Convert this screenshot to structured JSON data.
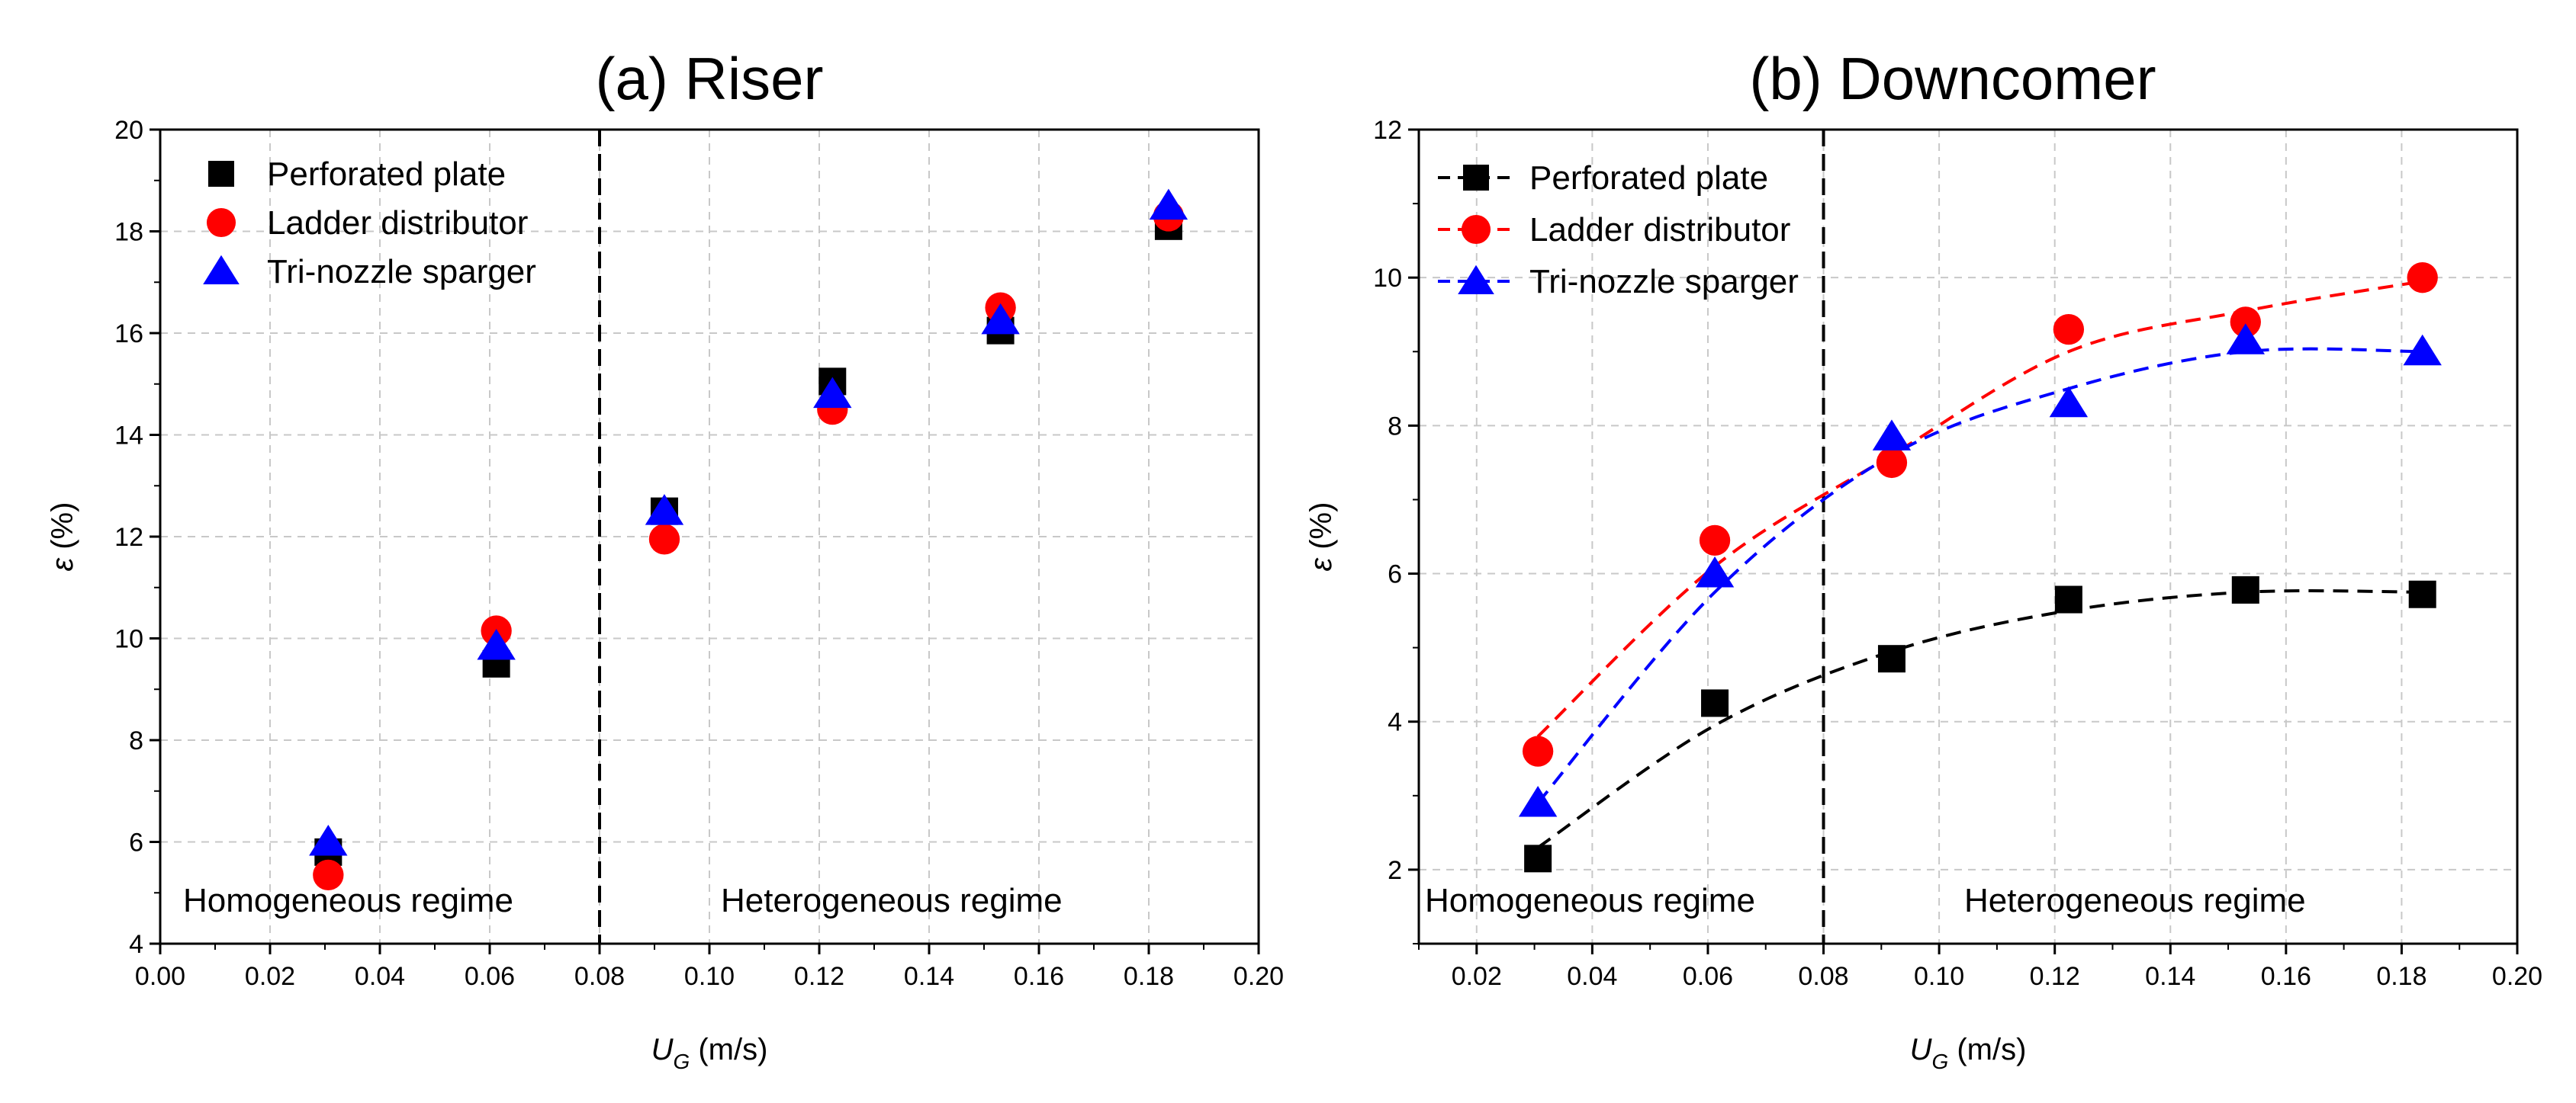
{
  "chart_data": [
    {
      "type": "scatter",
      "title": "(a) Riser",
      "xlabel_main": "U",
      "xlabel_sub": "G",
      "xlabel_unit": " (m/s)",
      "ylabel_main": "ε",
      "ylabel_unit": " (%)",
      "xlim": [
        0,
        0.2
      ],
      "ylim": [
        4,
        20
      ],
      "xticks": [
        0.0,
        0.02,
        0.04,
        0.06,
        0.08,
        0.1,
        0.12,
        0.14,
        0.16,
        0.18,
        0.2
      ],
      "xtick_labels": [
        "0.00",
        "0.02",
        "0.04",
        "0.06",
        "0.08",
        "0.10",
        "0.12",
        "0.14",
        "0.16",
        "0.18",
        "0.20"
      ],
      "yticks": [
        4,
        6,
        8,
        10,
        12,
        14,
        16,
        18,
        20
      ],
      "ytick_labels": [
        "4",
        "6",
        "8",
        "10",
        "12",
        "14",
        "16",
        "18",
        "20"
      ],
      "grid": true,
      "legend_position": "top-left",
      "regime_boundary_x": 0.08,
      "regime_labels": [
        "Homogeneous regime",
        "Heterogeneous regime"
      ],
      "x": [
        0.0306,
        0.0612,
        0.0918,
        0.1224,
        0.153,
        0.1836
      ],
      "series": [
        {
          "name": "Perforated plate",
          "marker": "square",
          "color": "#000000",
          "values": [
            5.8,
            9.5,
            12.5,
            15.05,
            16.05,
            18.1
          ]
        },
        {
          "name": "Ladder distributor",
          "marker": "circle",
          "color": "#ff0000",
          "values": [
            5.35,
            10.15,
            11.95,
            14.5,
            16.5,
            18.3
          ]
        },
        {
          "name": "Tri-nozzle sparger",
          "marker": "triangle",
          "color": "#0000ff",
          "values": [
            6.0,
            9.85,
            12.5,
            14.8,
            16.25,
            18.5
          ]
        }
      ]
    },
    {
      "type": "scatter",
      "title": "(b) Downcomer",
      "xlabel_main": "U",
      "xlabel_sub": "G",
      "xlabel_unit": " (m/s)",
      "ylabel_main": "ε",
      "ylabel_unit": " (%)",
      "xlim": [
        0.01,
        0.2
      ],
      "ylim": [
        1,
        12
      ],
      "xticks": [
        0.02,
        0.04,
        0.06,
        0.08,
        0.1,
        0.12,
        0.14,
        0.16,
        0.18,
        0.2
      ],
      "xtick_labels": [
        "0.02",
        "0.04",
        "0.06",
        "0.08",
        "0.10",
        "0.12",
        "0.14",
        "0.16",
        "0.18",
        "0.20"
      ],
      "yticks": [
        2,
        4,
        6,
        8,
        10,
        12
      ],
      "ytick_labels": [
        "2",
        "4",
        "6",
        "8",
        "10",
        "12"
      ],
      "grid": true,
      "legend_position": "top-left",
      "regime_boundary_x": 0.08,
      "regime_labels": [
        "Homogeneous regime",
        "Heterogeneous regime"
      ],
      "x": [
        0.0306,
        0.0612,
        0.0918,
        0.1224,
        0.153,
        0.1836
      ],
      "series": [
        {
          "name": "Perforated plate",
          "marker": "square",
          "color": "#000000",
          "values": [
            2.15,
            4.25,
            4.85,
            5.65,
            5.78,
            5.72
          ],
          "trend": [
            2.3,
            3.95,
            4.95,
            5.5,
            5.75,
            5.75
          ]
        },
        {
          "name": "Ladder distributor",
          "marker": "circle",
          "color": "#ff0000",
          "values": [
            3.6,
            6.45,
            7.5,
            9.3,
            9.4,
            10.0
          ],
          "trend": [
            3.8,
            6.1,
            7.6,
            9.0,
            9.55,
            9.95
          ]
        },
        {
          "name": "Tri-nozzle sparger",
          "marker": "triangle",
          "color": "#0000ff",
          "values": [
            2.9,
            6.0,
            7.85,
            8.3,
            9.15,
            9.0
          ],
          "trend": [
            2.9,
            5.75,
            7.6,
            8.5,
            9.0,
            9.0
          ]
        }
      ]
    }
  ]
}
